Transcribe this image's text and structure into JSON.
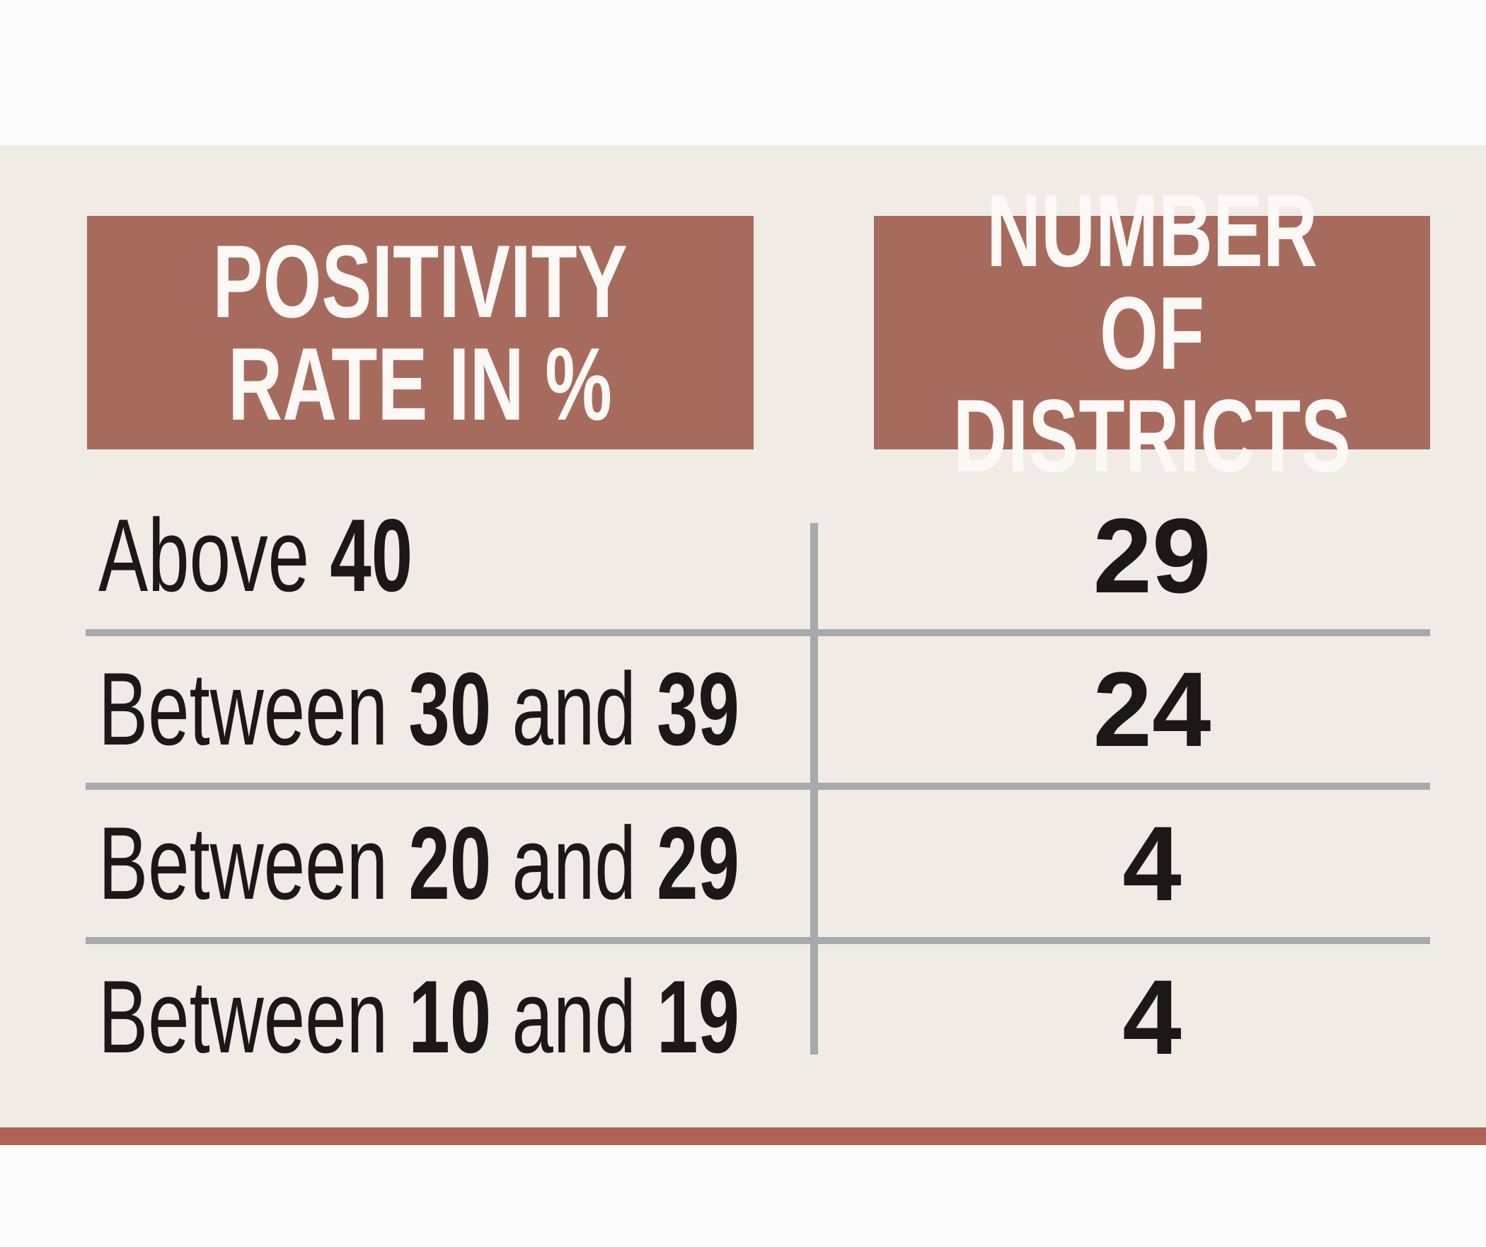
{
  "page": {
    "background": "#fdfcfc",
    "panel_background": "#f1ebe6",
    "accent_brown": "#a76b5e",
    "bottom_bar_color": "#b06354",
    "divider_color": "#a7a9ac",
    "text_color": "#1b1817",
    "header_text_color": "#fbf8f6"
  },
  "table": {
    "headers": [
      {
        "label": "POSITIVITY\nRATE IN %"
      },
      {
        "label": "NUMBER OF\nDISTRICTS"
      }
    ],
    "rows": [
      {
        "label_segments": [
          {
            "text": "Above ",
            "bold": false
          },
          {
            "text": "40",
            "bold": true
          }
        ],
        "value": "29"
      },
      {
        "label_segments": [
          {
            "text": "Between ",
            "bold": false
          },
          {
            "text": "30",
            "bold": true
          },
          {
            "text": " and ",
            "bold": false
          },
          {
            "text": "39",
            "bold": true
          }
        ],
        "value": "24"
      },
      {
        "label_segments": [
          {
            "text": "Between ",
            "bold": false
          },
          {
            "text": "20",
            "bold": true
          },
          {
            "text": " and ",
            "bold": false
          },
          {
            "text": "29",
            "bold": true
          }
        ],
        "value": "4"
      },
      {
        "label_segments": [
          {
            "text": "Between ",
            "bold": false
          },
          {
            "text": "10",
            "bold": true
          },
          {
            "text": " and ",
            "bold": false
          },
          {
            "text": "19",
            "bold": true
          }
        ],
        "value": "4"
      }
    ]
  },
  "chart_data": {
    "type": "table",
    "title": "",
    "columns": [
      "Positivity rate in %",
      "Number of districts"
    ],
    "categories": [
      "Above 40",
      "Between 30 and 39",
      "Between 20 and 29",
      "Between 10 and 19"
    ],
    "values": [
      29,
      24,
      4,
      4
    ],
    "legend_position": "none",
    "grid": "row-dividers"
  }
}
